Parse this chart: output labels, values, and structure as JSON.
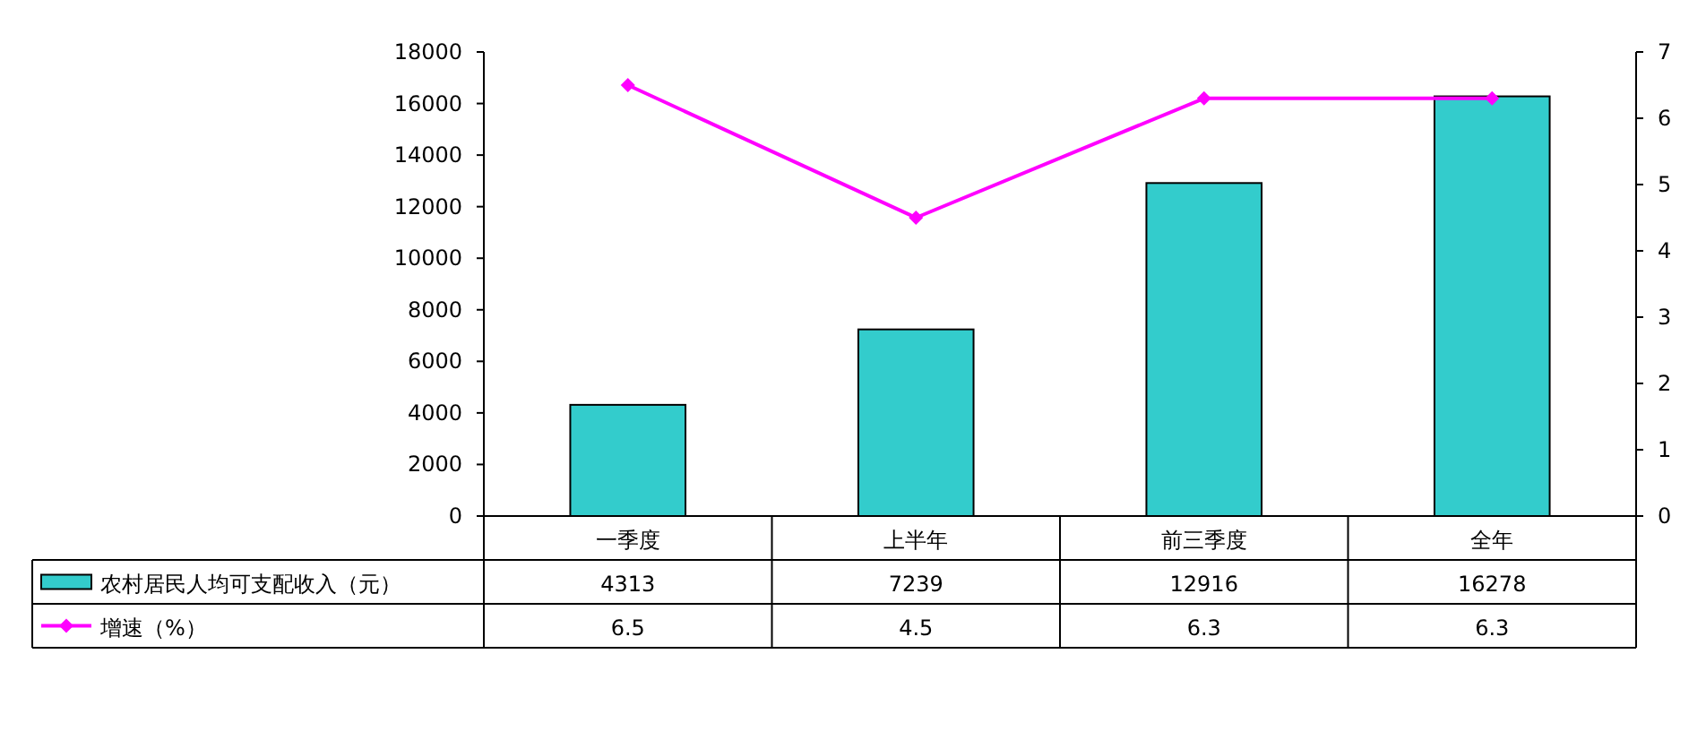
{
  "chart_data": {
    "type": "bar",
    "categories": [
      "一季度",
      "上半年",
      "前三季度",
      "全年"
    ],
    "series": [
      {
        "name": "农村居民人均可支配收入（元）",
        "color": "#33cccc",
        "values": [
          4313,
          7239,
          12916,
          16278
        ]
      },
      {
        "name": "增速（%）",
        "type": "line",
        "axis": "y2",
        "color": "#ff00ff",
        "marker": "diamond",
        "values": [
          6.5,
          4.5,
          6.3,
          6.3
        ]
      }
    ],
    "ylim": [
      0,
      18000
    ],
    "yticks": [
      0,
      2000,
      4000,
      6000,
      8000,
      10000,
      12000,
      14000,
      16000,
      18000
    ],
    "y2lim": [
      0,
      7
    ],
    "y2ticks": [
      0,
      1,
      2,
      3,
      4,
      5,
      6,
      7
    ],
    "data_labels": true,
    "legend": "bottom",
    "grid": false
  }
}
